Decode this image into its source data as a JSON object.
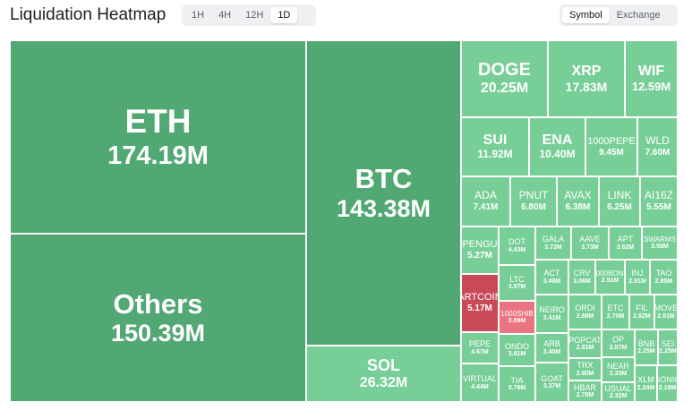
{
  "header": {
    "title": "Liquidation Heatmap"
  },
  "time_ranges": [
    {
      "label": "1H",
      "active": false
    },
    {
      "label": "4H",
      "active": false
    },
    {
      "label": "12H",
      "active": false
    },
    {
      "label": "1D",
      "active": true
    }
  ],
  "view_modes": [
    {
      "label": "Symbol",
      "active": true
    },
    {
      "label": "Exchange",
      "active": false
    }
  ],
  "colors": {
    "dark_green": "#51a873",
    "light_green": "#77cf97",
    "red": "#c94a57",
    "pink": "#ea7480"
  },
  "tiles": [
    {
      "symbol": "ETH",
      "value": "174.19M",
      "color": "dark_green"
    },
    {
      "symbol": "Others",
      "value": "150.39M",
      "color": "dark_green"
    },
    {
      "symbol": "BTC",
      "value": "143.38M",
      "color": "dark_green"
    },
    {
      "symbol": "SOL",
      "value": "26.32M",
      "color": "light_green"
    },
    {
      "symbol": "DOGE",
      "value": "20.25M",
      "color": "light_green"
    },
    {
      "symbol": "XRP",
      "value": "17.83M",
      "color": "light_green"
    },
    {
      "symbol": "WIF",
      "value": "12.59M",
      "color": "light_green"
    },
    {
      "symbol": "SUI",
      "value": "11.92M",
      "color": "light_green"
    },
    {
      "symbol": "ENA",
      "value": "10.40M",
      "color": "light_green"
    },
    {
      "symbol": "1000PEPE",
      "value": "9.45M",
      "color": "light_green"
    },
    {
      "symbol": "WLD",
      "value": "7.60M",
      "color": "light_green"
    },
    {
      "symbol": "ADA",
      "value": "7.41M",
      "color": "light_green"
    },
    {
      "symbol": "PNUT",
      "value": "6.80M",
      "color": "light_green"
    },
    {
      "symbol": "AVAX",
      "value": "6.38M",
      "color": "light_green"
    },
    {
      "symbol": "LINK",
      "value": "6.25M",
      "color": "light_green"
    },
    {
      "symbol": "AI16Z",
      "value": "5.55M",
      "color": "light_green"
    },
    {
      "symbol": "PENGU",
      "value": "5.27M",
      "color": "light_green"
    },
    {
      "symbol": "ARTCOIN",
      "value": "5.17M",
      "color": "red"
    },
    {
      "symbol": "DOT",
      "value": "4.43M",
      "color": "light_green"
    },
    {
      "symbol": "GALA",
      "value": "3.73M",
      "color": "light_green"
    },
    {
      "symbol": "AAVE",
      "value": "3.73M",
      "color": "light_green"
    },
    {
      "symbol": "APT",
      "value": "3.62M",
      "color": "light_green"
    },
    {
      "symbol": "SWARMS",
      "value": "3.58M",
      "color": "light_green"
    },
    {
      "symbol": "LTC",
      "value": "3.97M",
      "color": "light_green"
    },
    {
      "symbol": "ACT",
      "value": "3.49M",
      "color": "light_green"
    },
    {
      "symbol": "CRV",
      "value": "3.06M",
      "color": "light_green"
    },
    {
      "symbol": "1000BONK",
      "value": "2.91M",
      "color": "light_green"
    },
    {
      "symbol": "INJ",
      "value": "2.91M",
      "color": "light_green"
    },
    {
      "symbol": "TAO",
      "value": "2.85M",
      "color": "light_green"
    },
    {
      "symbol": "1000SHIB",
      "value": "3.89M",
      "color": "pink"
    },
    {
      "symbol": "NEIRO",
      "value": "3.41M",
      "color": "light_green"
    },
    {
      "symbol": "ORDI",
      "value": "2.88M",
      "color": "light_green"
    },
    {
      "symbol": "ETC",
      "value": "2.70M",
      "color": "light_green"
    },
    {
      "symbol": "FIL",
      "value": "2.62M",
      "color": "light_green"
    },
    {
      "symbol": "MOVE",
      "value": "2.61M",
      "color": "light_green"
    },
    {
      "symbol": "PEPE",
      "value": "4.67M",
      "color": "light_green"
    },
    {
      "symbol": "POPCAT",
      "value": "2.81M",
      "color": "light_green"
    },
    {
      "symbol": "OP",
      "value": "2.57M",
      "color": "light_green"
    },
    {
      "symbol": "BNB",
      "value": "2.25M",
      "color": "light_green"
    },
    {
      "symbol": "SEI",
      "value": "2.25M",
      "color": "light_green"
    },
    {
      "symbol": "ONDO",
      "value": "3.81M",
      "color": "light_green"
    },
    {
      "symbol": "ARB",
      "value": "3.40M",
      "color": "light_green"
    },
    {
      "symbol": "TRX",
      "value": "2.80M",
      "color": "light_green"
    },
    {
      "symbol": "NEAR",
      "value": "2.33M",
      "color": "light_green"
    },
    {
      "symbol": "VIRTUAL",
      "value": "4.44M",
      "color": "light_green"
    },
    {
      "symbol": "TIA",
      "value": "3.79M",
      "color": "light_green"
    },
    {
      "symbol": "GOAT",
      "value": "3.37M",
      "color": "light_green"
    },
    {
      "symbol": "HBAR",
      "value": "2.78M",
      "color": "light_green"
    },
    {
      "symbol": "USUAL",
      "value": "2.32M",
      "color": "light_green"
    },
    {
      "symbol": "XLM",
      "value": "2.24M",
      "color": "light_green"
    },
    {
      "symbol": "SONIC",
      "value": "2.18M",
      "color": "light_green"
    }
  ]
}
